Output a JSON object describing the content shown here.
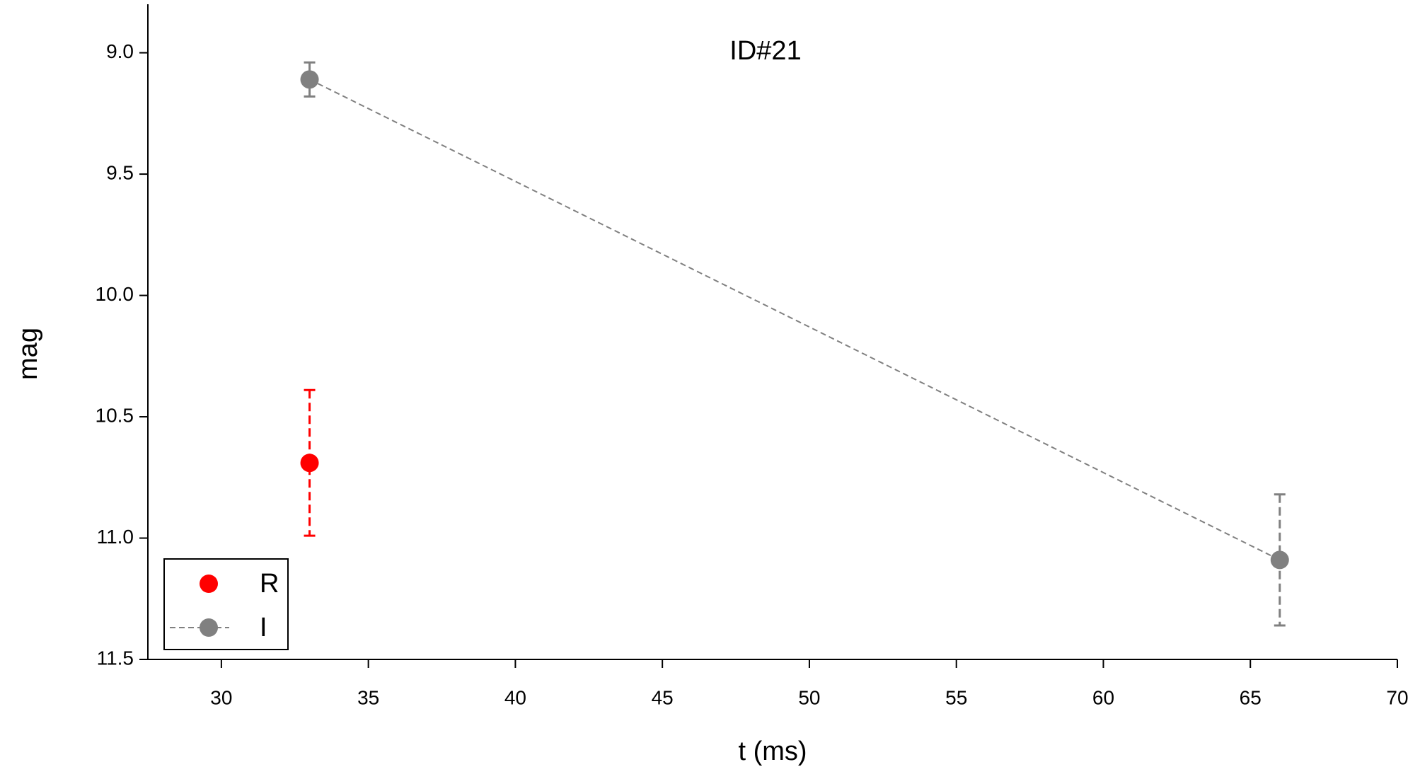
{
  "chart_data": {
    "type": "scatter",
    "title": "ID#21",
    "x_label": "t (ms)",
    "y_label": "mag",
    "xlim": [
      27.5,
      70
    ],
    "xticks": [
      30,
      35,
      40,
      45,
      50,
      55,
      60,
      65,
      70
    ],
    "ylim": [
      11.5,
      8.8
    ],
    "yticks": [
      {
        "value": 9,
        "label": "9.0"
      },
      9.5,
      {
        "value": 10,
        "label": "10.0"
      },
      10.5,
      {
        "value": 11,
        "label": "11.0"
      },
      11.5
    ],
    "legend": "lower left",
    "series": [
      {
        "name": "R",
        "color": "#ff0000",
        "linestyle": "none",
        "x": [
          33
        ],
        "values": [
          10.69
        ],
        "errors": [
          0.3
        ]
      },
      {
        "name": "I",
        "color": "#808080",
        "linestyle": "dashed",
        "x": [
          33,
          66
        ],
        "values": [
          9.11,
          11.09
        ],
        "errors": [
          0.07,
          0.27
        ]
      }
    ]
  }
}
